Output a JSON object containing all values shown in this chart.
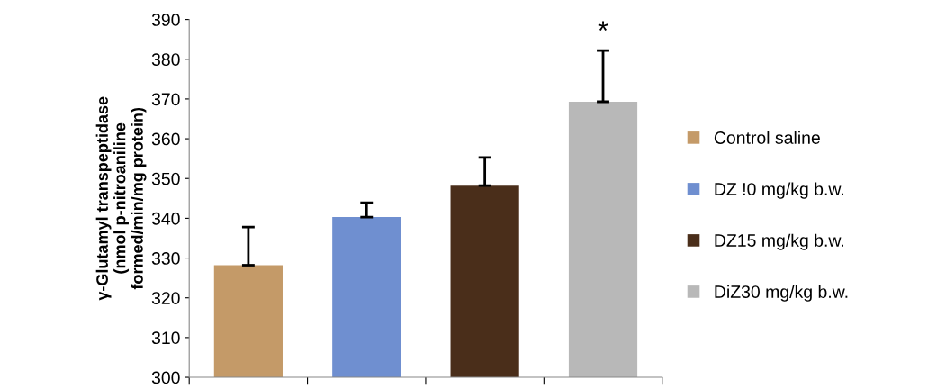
{
  "chart_data": {
    "type": "bar",
    "ylabel": "γ-Glutamyl transpeptidase\n(nmol p-nitroaniline\nformed/min/mg protein)",
    "categories": [
      null,
      null,
      null,
      null
    ],
    "series": [
      {
        "name": "Control saline",
        "color": "#c49a68",
        "values": [
          328.2,
          null,
          null,
          null
        ],
        "errors": [
          9.6,
          null,
          null,
          null
        ]
      },
      {
        "name": "DZ !0 mg/kg b.w.",
        "color": "#6f8fd0",
        "values": [
          null,
          340.3,
          null,
          null
        ],
        "errors": [
          null,
          3.6,
          null,
          null
        ]
      },
      {
        "name": "DZ15 mg/kg b.w.",
        "color": "#4a2e1a",
        "values": [
          null,
          null,
          348.2,
          null
        ],
        "errors": [
          null,
          null,
          7.1,
          null
        ]
      },
      {
        "name": "DiZ30 mg/kg b.w.",
        "color": "#b8b8b8",
        "values": [
          null,
          null,
          null,
          369.3
        ],
        "errors": [
          null,
          null,
          null,
          12.9
        ]
      }
    ],
    "annotations": [
      "*"
    ],
    "ylim": [
      300,
      390
    ],
    "yticks": [
      300,
      310,
      320,
      330,
      340,
      350,
      360,
      370,
      380,
      390
    ],
    "grid": false,
    "legend": "right"
  }
}
